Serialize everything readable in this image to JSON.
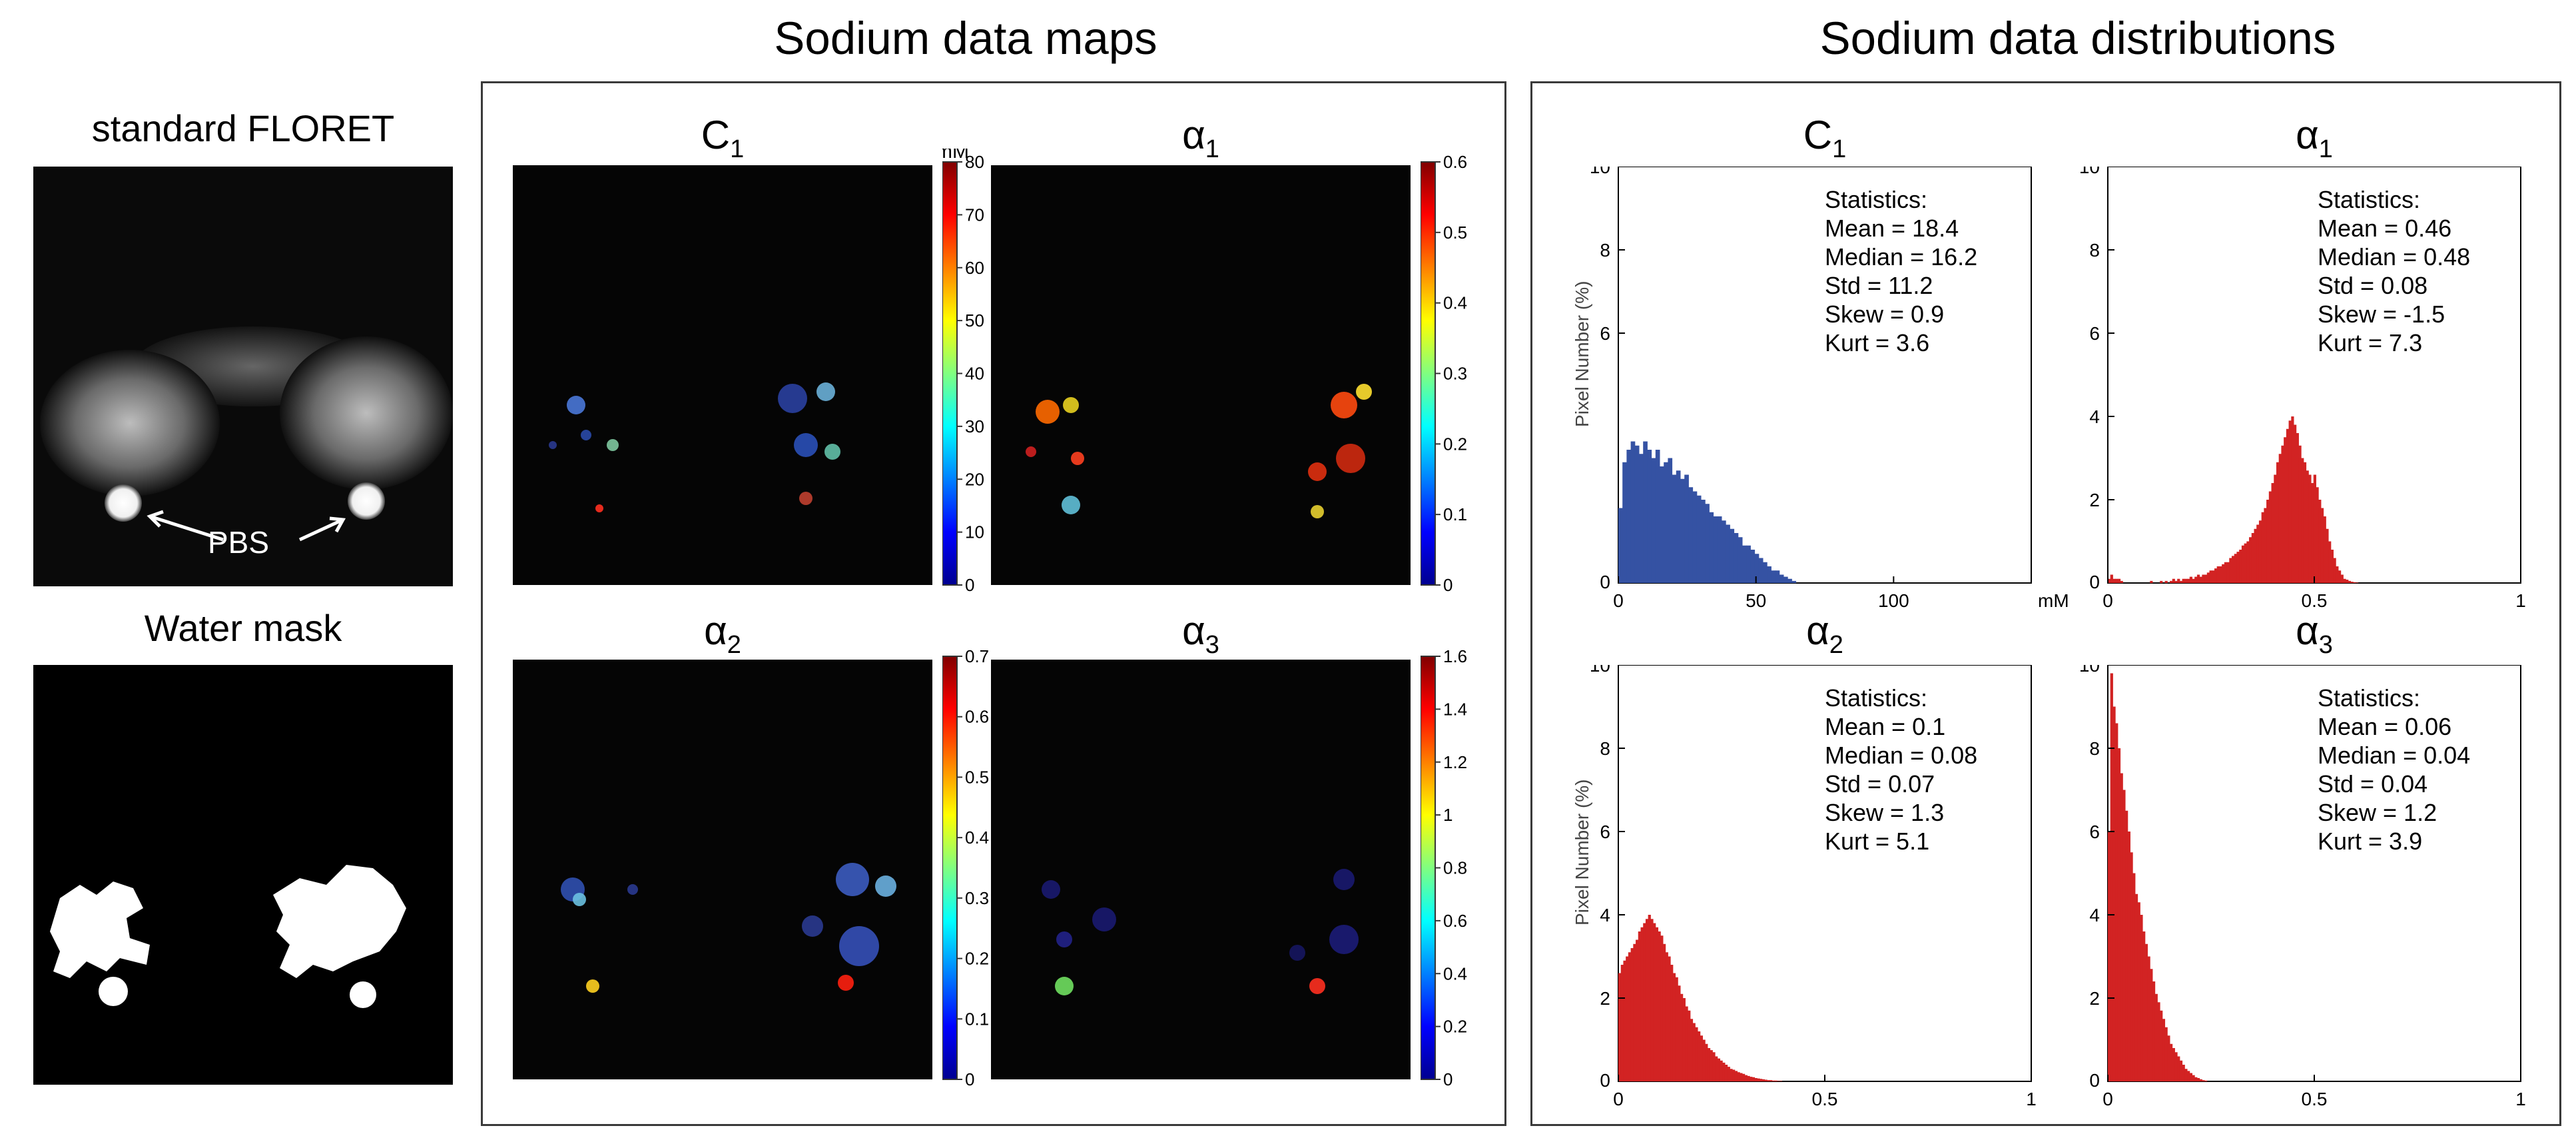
{
  "section_titles": {
    "maps": "Sodium data maps",
    "distributions": "Sodium data distributions"
  },
  "left": {
    "floret_title": "standard FLORET",
    "mask_title": "Water mask",
    "pbs_label": "PBS"
  },
  "maps": [
    {
      "title": "C",
      "sub": "1",
      "unit": "mM",
      "ticks": [
        "80",
        "70",
        "60",
        "50",
        "40",
        "30",
        "20",
        "10",
        "0"
      ]
    },
    {
      "title": "α",
      "sub": "1",
      "unit": "",
      "ticks": [
        "0.6",
        "0.5",
        "0.4",
        "0.3",
        "0.2",
        "0.1",
        "0"
      ]
    },
    {
      "title": "α",
      "sub": "2",
      "unit": "",
      "ticks": [
        "0.7",
        "0.6",
        "0.5",
        "0.4",
        "0.3",
        "0.2",
        "0.1",
        "0"
      ]
    },
    {
      "title": "α",
      "sub": "3",
      "unit": "",
      "ticks": [
        "1.6",
        "1.4",
        "1.2",
        "1",
        "0.8",
        "0.6",
        "0.4",
        "0.2",
        "0"
      ]
    }
  ],
  "colors": {
    "blue_hist": "#3552a3",
    "red_hist": "#d22323",
    "frame": "#3a3a3a"
  },
  "chart_data": [
    {
      "type": "bar",
      "title": "C",
      "title_sub": "1",
      "xlabel_unit": "mM",
      "ylabel": "Pixel Number (%)",
      "xlim": [
        0,
        150
      ],
      "xticks": [
        "0",
        "50",
        "100"
      ],
      "yticks": [
        "10",
        "8",
        "6"
      ],
      "stats_header": "Statistics:",
      "stats": [
        "Mean   = 18.4",
        "Median = 16.2",
        "Std     = 11.2",
        "Skew   = 0.9",
        "Kurt    = 3.6"
      ],
      "series": [
        {
          "name": "C1",
          "x0": 0,
          "dx": 1.5,
          "values": [
            1.8,
            2.9,
            3.2,
            3.4,
            3.3,
            3.1,
            3.4,
            3.2,
            3.0,
            3.2,
            2.8,
            2.9,
            3.0,
            2.6,
            2.7,
            2.5,
            2.6,
            2.3,
            2.2,
            2.1,
            2.0,
            1.9,
            1.7,
            1.6,
            1.6,
            1.5,
            1.4,
            1.3,
            1.2,
            1.1,
            0.9,
            0.9,
            0.8,
            0.7,
            0.6,
            0.5,
            0.4,
            0.3,
            0.3,
            0.2,
            0.15,
            0.1,
            0.05
          ]
        }
      ]
    },
    {
      "type": "bar",
      "title": "α",
      "title_sub": "1",
      "xlabel_unit": "",
      "ylabel": "",
      "xlim": [
        0,
        1
      ],
      "xticks": [
        "0",
        "0.5",
        "1"
      ],
      "yticks": [
        "10",
        "8",
        "6",
        "4",
        "2"
      ],
      "stats_header": "Statistics:",
      "stats": [
        "Mean   = 0.46",
        "Median = 0.48",
        "Std     = 0.08",
        "Skew   = -1.5",
        "Kurt    = 7.3"
      ],
      "series": [
        {
          "name": "a1",
          "x0": 0.0,
          "dx": 0.006,
          "values": [
            0.1,
            0.2,
            0.1,
            0.1,
            0.1,
            0.05,
            0,
            0,
            0,
            0,
            0,
            0,
            0,
            0,
            0,
            0,
            0,
            0.05,
            0,
            0,
            0,
            0.05,
            0,
            0.05,
            0,
            0.05,
            0.1,
            0.05,
            0.1,
            0.05,
            0.1,
            0.1,
            0.1,
            0.15,
            0.1,
            0.15,
            0.2,
            0.15,
            0.2,
            0.2,
            0.25,
            0.3,
            0.3,
            0.35,
            0.4,
            0.4,
            0.45,
            0.5,
            0.5,
            0.6,
            0.65,
            0.7,
            0.75,
            0.8,
            0.9,
            0.95,
            1.0,
            1.1,
            1.2,
            1.3,
            1.4,
            1.5,
            1.7,
            1.8,
            2.0,
            2.2,
            2.4,
            2.6,
            2.9,
            3.1,
            3.3,
            3.5,
            3.7,
            3.9,
            4.0,
            3.8,
            3.6,
            3.3,
            3.0,
            2.9,
            2.7,
            2.6,
            2.4,
            2.6,
            2.3,
            2.0,
            1.8,
            1.6,
            1.3,
            1.0,
            0.8,
            0.6,
            0.4,
            0.3,
            0.2,
            0.1,
            0.08,
            0.05,
            0.03,
            0.02,
            0.01
          ]
        }
      ]
    },
    {
      "type": "bar",
      "title": "α",
      "title_sub": "2",
      "xlabel_unit": "",
      "ylabel": "Pixel Number (%)",
      "xlim": [
        0,
        1
      ],
      "xticks": [
        "0",
        "0.5",
        "1"
      ],
      "yticks": [
        "10",
        "8",
        "6",
        "4",
        "2"
      ],
      "stats_header": "Statistics:",
      "stats": [
        "Mean   = 0.1",
        "Median = 0.08",
        "Std     = 0.07",
        "Skew   = 1.3",
        "Kurt    = 5.1"
      ],
      "series": [
        {
          "name": "a2",
          "x0": 0.0,
          "dx": 0.006,
          "values": [
            2.6,
            2.8,
            2.9,
            3.0,
            3.1,
            3.2,
            3.3,
            3.4,
            3.6,
            3.7,
            3.8,
            3.9,
            4.0,
            3.9,
            3.8,
            3.7,
            3.6,
            3.5,
            3.3,
            3.1,
            3.0,
            2.8,
            2.6,
            2.5,
            2.3,
            2.1,
            2.0,
            1.8,
            1.7,
            1.5,
            1.4,
            1.3,
            1.2,
            1.1,
            1.0,
            0.9,
            0.8,
            0.75,
            0.7,
            0.6,
            0.55,
            0.5,
            0.45,
            0.4,
            0.35,
            0.3,
            0.28,
            0.25,
            0.22,
            0.2,
            0.18,
            0.15,
            0.13,
            0.11,
            0.1,
            0.08,
            0.07,
            0.06,
            0.05,
            0.04,
            0.03,
            0.03,
            0.02,
            0.02,
            0.01,
            0.01
          ]
        }
      ]
    },
    {
      "type": "bar",
      "title": "α",
      "title_sub": "3",
      "xlabel_unit": "",
      "ylabel": "",
      "xlim": [
        0,
        1
      ],
      "xticks": [
        "0",
        "0.5",
        "1"
      ],
      "yticks": [
        "10",
        "8",
        "6",
        "4",
        "2"
      ],
      "stats_header": "Statistics:",
      "stats": [
        "Mean   = 0.06",
        "Median = 0.04",
        "Std     = 0.04",
        "Skew   = 1.2",
        "Kurt    = 3.9"
      ],
      "series": [
        {
          "name": "a3",
          "x0": 0.0,
          "dx": 0.006,
          "values": [
            6.0,
            9.8,
            9.0,
            8.6,
            8.0,
            7.4,
            7.0,
            6.5,
            6.0,
            5.5,
            5.0,
            4.5,
            4.3,
            4.0,
            3.6,
            3.3,
            3.0,
            2.7,
            2.4,
            2.1,
            1.9,
            1.7,
            1.5,
            1.3,
            1.1,
            0.9,
            0.8,
            0.7,
            0.6,
            0.5,
            0.4,
            0.3,
            0.25,
            0.2,
            0.15,
            0.1,
            0.08,
            0.05,
            0.03,
            0.02
          ]
        }
      ]
    }
  ]
}
